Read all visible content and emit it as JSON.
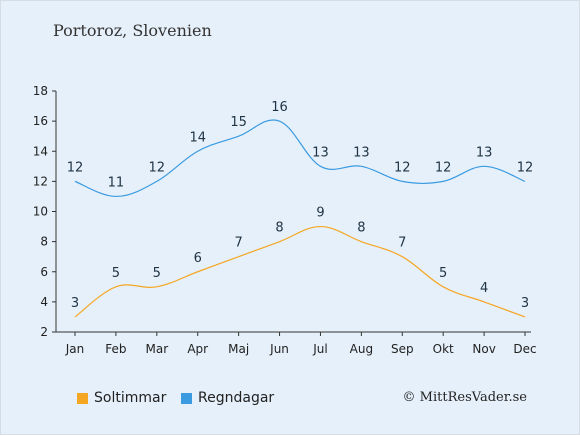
{
  "title": "Portoroz, Slovenien",
  "copyright": "© MittResVader.se",
  "colors": {
    "sun": "#f5a623",
    "rain": "#3a9be0",
    "background": "#e6f0fa"
  },
  "legend": [
    {
      "label": "Soltimmar",
      "color": "#f5a623"
    },
    {
      "label": "Regndagar",
      "color": "#3a9be0"
    }
  ],
  "chart_data": {
    "type": "line",
    "categories": [
      "Jan",
      "Feb",
      "Mar",
      "Apr",
      "Maj",
      "Jun",
      "Jul",
      "Aug",
      "Sep",
      "Okt",
      "Nov",
      "Dec"
    ],
    "series": [
      {
        "name": "Soltimmar",
        "color": "#f5a623",
        "values": [
          3,
          5,
          5,
          6,
          7,
          8,
          9,
          8,
          7,
          5,
          4,
          3
        ]
      },
      {
        "name": "Regndagar",
        "color": "#3a9be0",
        "values": [
          12,
          11,
          12,
          14,
          15,
          16,
          13,
          13,
          12,
          12,
          13,
          12
        ]
      }
    ],
    "ylim": [
      2,
      18
    ],
    "yticks": [
      2,
      4,
      6,
      8,
      10,
      12,
      14,
      16,
      18
    ],
    "grid": false,
    "legend_position": "bottom-left"
  }
}
